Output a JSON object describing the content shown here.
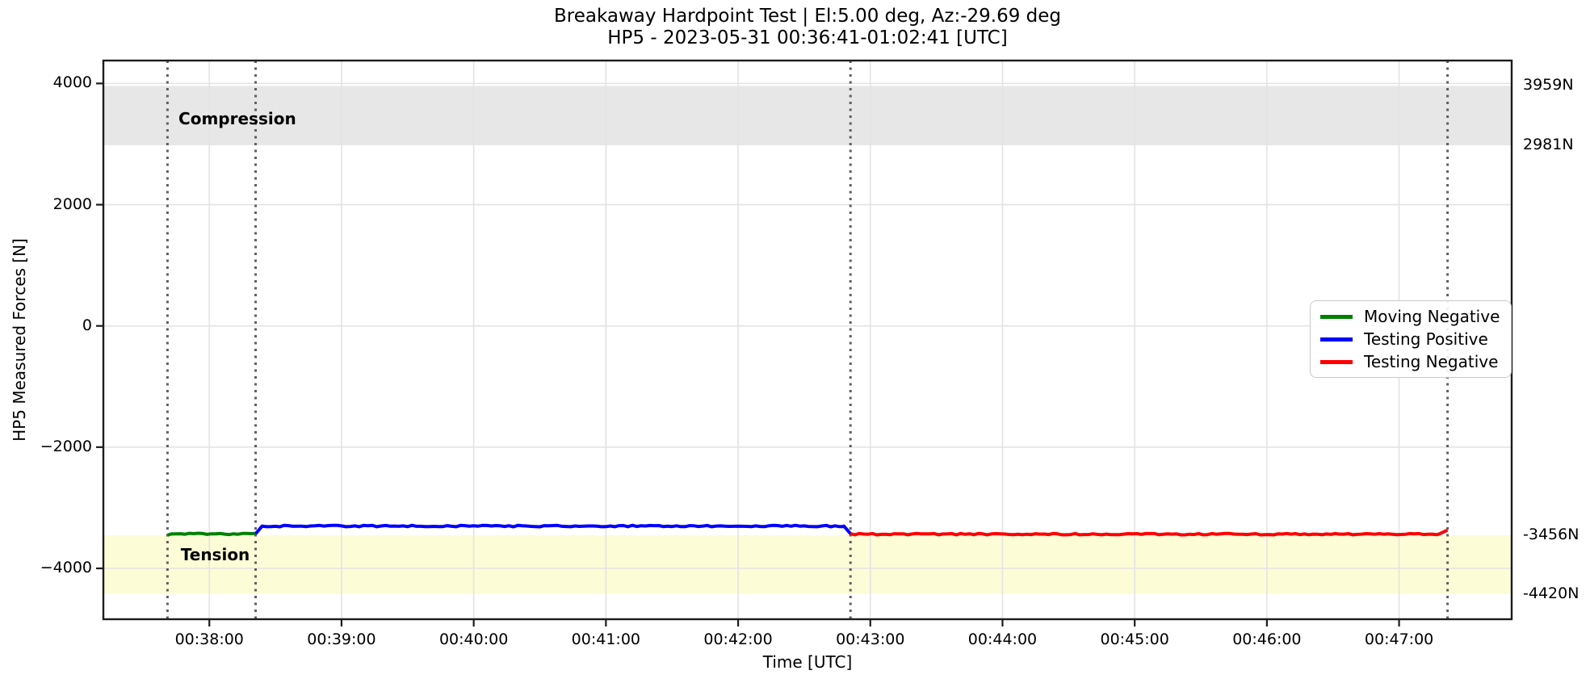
{
  "chart_data": {
    "type": "line",
    "title": "Breakaway Hardpoint Test | El:5.00 deg, Az:-29.69 deg",
    "subtitle": "HP5 - 2023-05-31 00:36:41-01:02:41 [UTC]",
    "xlabel": "Time [UTC]",
    "ylabel": "HP5 Measured Forces [N]",
    "grid": true,
    "x_axis": {
      "unit": "seconds since 00:00:00 UTC",
      "lim": [
        2231.9,
        2871.1
      ],
      "ticks": [
        {
          "s": 2280,
          "label": "00:38:00"
        },
        {
          "s": 2340,
          "label": "00:39:00"
        },
        {
          "s": 2400,
          "label": "00:40:00"
        },
        {
          "s": 2460,
          "label": "00:41:00"
        },
        {
          "s": 2520,
          "label": "00:42:00"
        },
        {
          "s": 2580,
          "label": "00:43:00"
        },
        {
          "s": 2640,
          "label": "00:44:00"
        },
        {
          "s": 2700,
          "label": "00:45:00"
        },
        {
          "s": 2760,
          "label": "00:46:00"
        },
        {
          "s": 2820,
          "label": "00:47:00"
        }
      ]
    },
    "y_axis": {
      "lim": [
        -4839,
        4378
      ],
      "ticks": [
        {
          "v": 4000,
          "label": "4000"
        },
        {
          "v": 2000,
          "label": "2000"
        },
        {
          "v": 0,
          "label": "0"
        },
        {
          "v": -2000,
          "label": "−2000"
        },
        {
          "v": -4000,
          "label": "−4000"
        }
      ]
    },
    "bands": [
      {
        "name": "compression",
        "from": 2981,
        "to": 3959,
        "color": "#e7e7e7"
      },
      {
        "name": "tension",
        "from": -4420,
        "to": -3456,
        "color": "#fcfcd7"
      }
    ],
    "right_labels": [
      {
        "text": "3959N",
        "at": 3959
      },
      {
        "text": "2981N",
        "at": 2981
      },
      {
        "text": "-3456N",
        "at": -3456
      },
      {
        "text": "-4420N",
        "at": -4420
      }
    ],
    "phase_lines": {
      "style": "dotted",
      "color": "#5f5f5f",
      "at_seconds": [
        2261,
        2301,
        2571,
        2842
      ],
      "at_times": [
        "00:37:41",
        "00:38:21",
        "00:42:51",
        "00:47:22"
      ]
    },
    "series": [
      {
        "name": "Moving Negative",
        "color": "#008000",
        "points": [
          [
            2261,
            -3452
          ],
          [
            2263,
            -3430
          ],
          [
            2301,
            -3430
          ]
        ]
      },
      {
        "name": "Testing Positive",
        "color": "#0000ff",
        "points": [
          [
            2301,
            -3430
          ],
          [
            2304,
            -3302
          ],
          [
            2568,
            -3302
          ],
          [
            2571,
            -3428
          ]
        ]
      },
      {
        "name": "Testing Negative",
        "color": "#ff0000",
        "points": [
          [
            2571,
            -3436
          ],
          [
            2838,
            -3436
          ],
          [
            2842,
            -3368
          ]
        ]
      }
    ],
    "annotations": [
      {
        "text": "Compression",
        "x": 2266,
        "y": 3420
      },
      {
        "text": "Tension",
        "x": 2267,
        "y": -3775
      }
    ],
    "legend": {
      "position": "center-right",
      "items": [
        {
          "label": "Moving Negative",
          "color": "#008000"
        },
        {
          "label": "Testing Positive",
          "color": "#0000ff"
        },
        {
          "label": "Testing Negative",
          "color": "#ff0000"
        }
      ]
    }
  }
}
